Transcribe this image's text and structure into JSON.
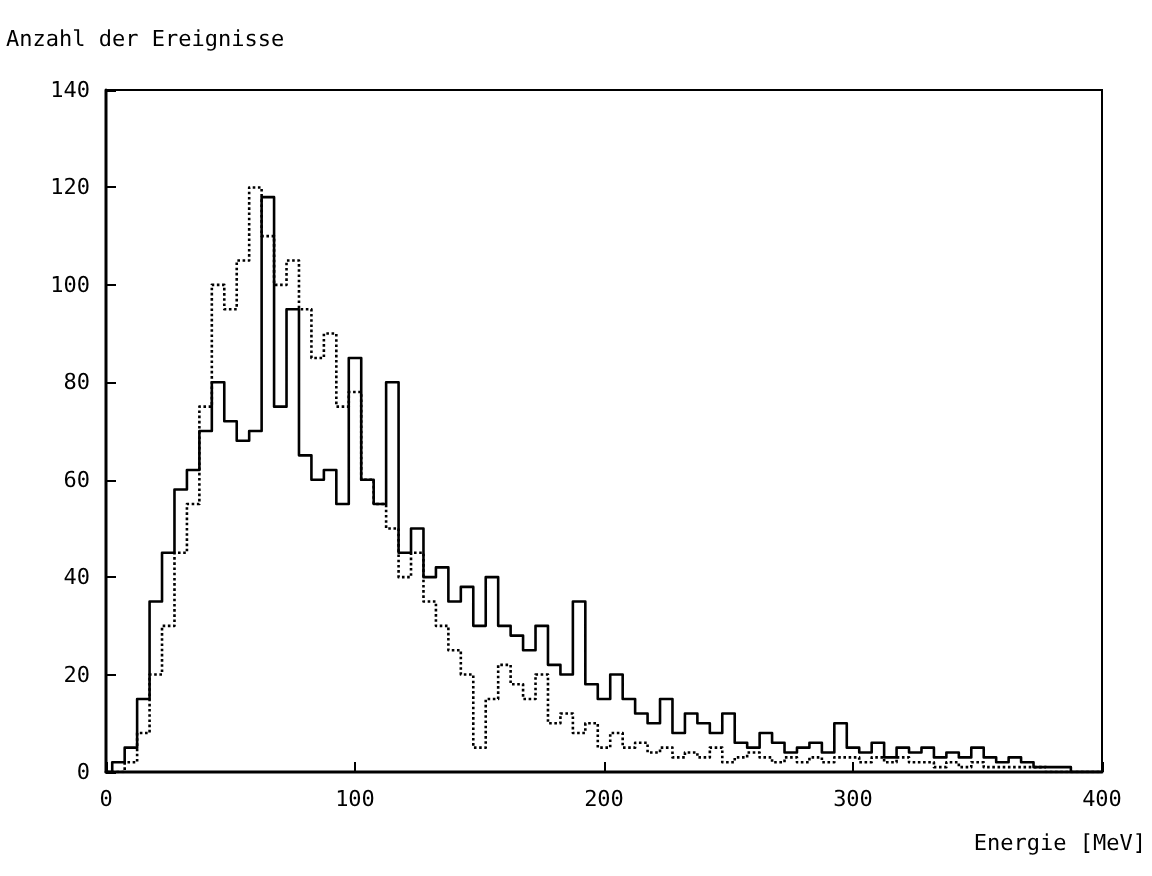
{
  "chart_data": {
    "type": "step",
    "ylabel": "Anzahl der Ereignisse",
    "xlabel": "Energie [MeV]",
    "x": [
      0,
      5,
      10,
      15,
      20,
      25,
      30,
      35,
      40,
      45,
      50,
      55,
      60,
      65,
      70,
      75,
      80,
      85,
      90,
      95,
      100,
      105,
      110,
      115,
      120,
      125,
      130,
      135,
      140,
      145,
      150,
      155,
      160,
      165,
      170,
      175,
      180,
      185,
      190,
      195,
      200,
      205,
      210,
      215,
      220,
      225,
      230,
      235,
      240,
      245,
      250,
      255,
      260,
      265,
      270,
      275,
      280,
      285,
      290,
      295,
      300,
      305,
      310,
      315,
      320,
      325,
      330,
      335,
      340,
      345,
      350,
      355,
      360,
      365,
      370,
      375,
      380,
      385,
      390,
      395,
      400
    ],
    "series": [
      {
        "color": "#000000",
        "line_style": "solid",
        "values": [
          0,
          2,
          5,
          15,
          35,
          45,
          58,
          62,
          70,
          80,
          72,
          68,
          70,
          118,
          75,
          95,
          65,
          60,
          62,
          55,
          85,
          60,
          55,
          80,
          45,
          50,
          40,
          42,
          35,
          38,
          30,
          40,
          30,
          28,
          25,
          30,
          22,
          20,
          35,
          18,
          15,
          20,
          15,
          12,
          10,
          15,
          8,
          12,
          10,
          8,
          12,
          6,
          5,
          8,
          6,
          4,
          5,
          6,
          4,
          10,
          5,
          4,
          6,
          3,
          5,
          4,
          5,
          3,
          4,
          3,
          5,
          3,
          2,
          3,
          2,
          1,
          1,
          1,
          0,
          0,
          0
        ]
      },
      {
        "color": "#000000",
        "line_style": "dotted",
        "values": [
          0,
          0,
          2,
          8,
          20,
          30,
          45,
          55,
          75,
          100,
          95,
          105,
          120,
          110,
          100,
          105,
          95,
          85,
          90,
          75,
          78,
          60,
          55,
          50,
          40,
          45,
          35,
          30,
          25,
          20,
          5,
          15,
          22,
          18,
          15,
          20,
          10,
          12,
          8,
          10,
          5,
          8,
          5,
          6,
          4,
          5,
          3,
          4,
          3,
          5,
          2,
          3,
          4,
          3,
          2,
          3,
          2,
          3,
          2,
          3,
          3,
          2,
          3,
          2,
          3,
          2,
          2,
          1,
          2,
          1,
          2,
          1,
          1,
          1,
          1,
          1,
          0,
          0,
          0,
          0,
          0
        ]
      }
    ],
    "xlim": [
      0,
      400
    ],
    "xticks": [
      0,
      100,
      200,
      300,
      400
    ],
    "ylim": [
      0,
      140
    ],
    "yticks": [
      0,
      20,
      40,
      60,
      80,
      100,
      120,
      140
    ],
    "grid": false
  }
}
